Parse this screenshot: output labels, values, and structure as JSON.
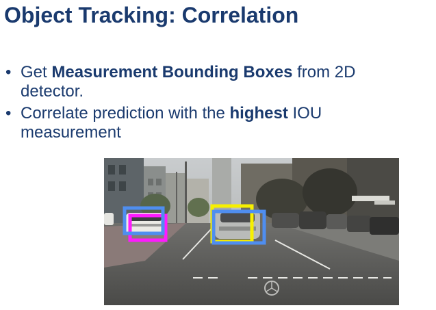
{
  "slide": {
    "title": "Object Tracking: Correlation",
    "bullets": [
      {
        "pre": "Get ",
        "bold": "Measurement Bounding Boxes",
        "post": " from 2D detector."
      },
      {
        "pre": "Correlate prediction with the ",
        "bold": "highest",
        "post": " IOU measurement"
      }
    ]
  },
  "colors": {
    "title": "#1a3a6e",
    "measurement_box": "#4f8ef0",
    "prediction_box_magenta": "#ff1aff",
    "prediction_box_yellow": "#f7f000"
  }
}
